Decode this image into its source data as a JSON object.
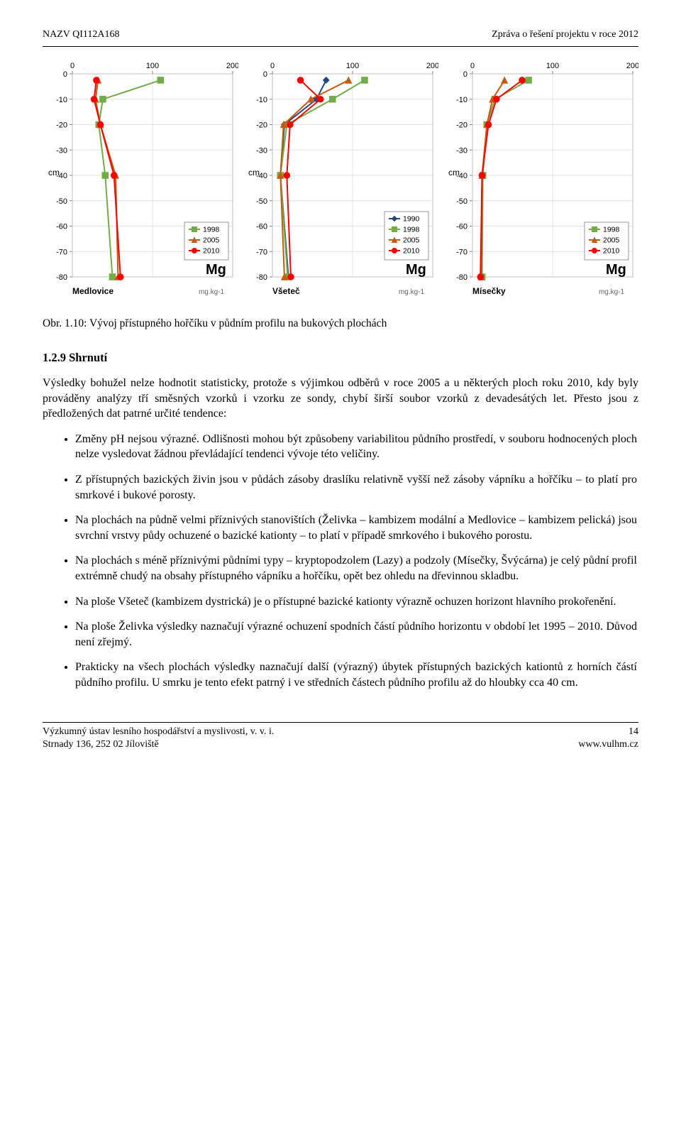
{
  "header": {
    "left": "NAZV QI112A168",
    "right": "Zpráva o řešení projektu v roce 2012"
  },
  "caption": "Obr. 1.10: Vývoj přístupného hořčíku v půdním profilu na bukových plochách",
  "section": {
    "heading": "1.2.9 Shrnutí",
    "intro": "Výsledky bohužel nelze hodnotit statisticky, protože s výjimkou odběrů v roce 2005 a u některých ploch roku 2010, kdy byly prováděny analýzy tří směsných vzorků i vzorku ze sondy, chybí širší soubor vzorků z devadesátých let. Přesto jsou z předložených dat patrné určité tendence:",
    "bullets": [
      "Změny pH nejsou výrazné. Odlišnosti mohou být způsobeny variabilitou půdního prostředí, v souboru hodnocených ploch nelze vysledovat žádnou převládající tendenci vývoje této veličiny.",
      "Z přístupných bazických živin jsou v půdách zásoby draslíku relativně vyšší než zásoby vápníku a hořčíku – to platí pro smrkové i bukové porosty.",
      "Na plochách na půdně velmi příznivých stanovištích (Želivka – kambizem modální a Medlovice – kambizem pelická) jsou svrchní vrstvy půdy ochuzené o bazické kationty – to platí v případě smrkového i bukového porostu.",
      "Na plochách s méně příznivými půdními typy – kryptopodzolem (Lazy) a podzoly (Mísečky, Švýcárna) je celý půdní profil extrémně chudý na obsahy přístupného vápníku a hořčíku, opět bez ohledu na dřevinnou skladbu.",
      "Na ploše Všeteč (kambizem dystrická) je o přístupné bazické kationty výrazně ochuzen horizont hlavního prokořenění.",
      "Na ploše Želivka výsledky naznačují výrazné ochuzení spodních částí půdního horizontu v období let 1995 – 2010. Důvod není zřejmý.",
      "Prakticky na všech plochách výsledky naznačují další (výrazný) úbytek přístupných bazických kationtů z horních částí půdního profilu. U smrku je tento efekt patrný i ve středních částech půdního profilu až do hloubky cca 40 cm."
    ]
  },
  "footer": {
    "left1": "Výzkumný ústav lesního hospodářství a myslivosti, v. v. i.",
    "left2": "Strnady 136, 252 02 Jíloviště",
    "right1": "14",
    "right2": "www.vulhm.cz"
  },
  "chart_common": {
    "type": "line",
    "y_quantity": "Mg",
    "y_units": "mg.kg-1",
    "y_axis_label": "cm",
    "xlim": [
      0,
      200
    ],
    "xtick_step": 100,
    "ylim": [
      -80,
      0
    ],
    "ytick_step": 10,
    "background_color": "#ffffff",
    "border_color": "#808080",
    "grid_color": "#d9d9d9",
    "axis_fontsize": 11,
    "title_fontsize": 20,
    "marker_size": 6,
    "line_width": 2,
    "series_colors": {
      "1990": "#1f497d",
      "1998": "#70ad47",
      "2005": "#c55a11",
      "2010": "#ff0000"
    },
    "marker_styles": {
      "1990": "diamond",
      "1998": "square",
      "2005": "triangle",
      "2010": "circle"
    },
    "legend_box_border": "#808080"
  },
  "charts": [
    {
      "site": "Medlovice",
      "legend_years": [
        "1998",
        "2005",
        "2010"
      ],
      "depths": [
        -2.5,
        -10,
        -20,
        -40,
        -80
      ],
      "series": {
        "1998": [
          110,
          38,
          33,
          41,
          50
        ],
        "2005": [
          32,
          29,
          35,
          54,
          57
        ],
        "2010": [
          30,
          27,
          35,
          52,
          60
        ]
      }
    },
    {
      "site": "Všeteč",
      "legend_years": [
        "1990",
        "1998",
        "2005",
        "2010"
      ],
      "depths": [
        -2.5,
        -10,
        -20,
        -40,
        -80
      ],
      "series": {
        "1990": [
          67,
          55,
          15,
          10,
          20
        ],
        "1998": [
          115,
          75,
          18,
          10,
          19
        ],
        "2005": [
          95,
          48,
          14,
          10,
          15
        ],
        "2010": [
          35,
          60,
          22,
          18,
          23
        ]
      }
    },
    {
      "site": "Mísečky",
      "legend_years": [
        "1998",
        "2005",
        "2010"
      ],
      "depths": [
        -2.5,
        -10,
        -20,
        -40,
        -80
      ],
      "series": {
        "1998": [
          70,
          28,
          18,
          13,
          12
        ],
        "2005": [
          40,
          25,
          18,
          12,
          11
        ],
        "2010": [
          62,
          30,
          20,
          12,
          10
        ]
      }
    }
  ]
}
